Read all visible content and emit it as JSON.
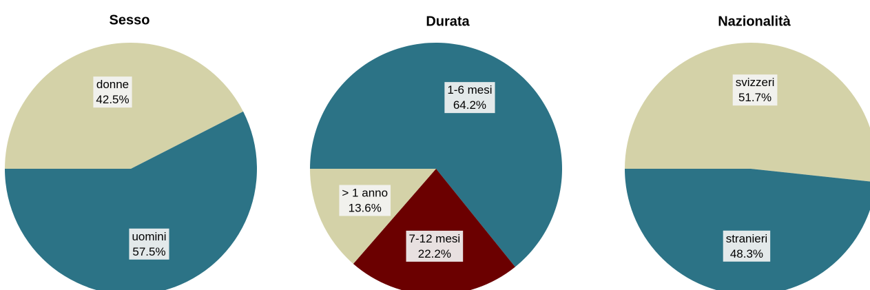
{
  "chart_data": [
    {
      "type": "pie",
      "title": "Sesso",
      "categories": [
        "donne",
        "uomini"
      ],
      "values": [
        42.5,
        57.5
      ],
      "value_labels": [
        "42.5%",
        "57.5%"
      ],
      "colors": [
        "#d4d2a8",
        "#2c7386"
      ]
    },
    {
      "type": "pie",
      "title": "Durata",
      "categories": [
        "1-6 mesi",
        "7-12 mesi",
        "> 1 anno"
      ],
      "values": [
        64.2,
        22.2,
        13.6
      ],
      "value_labels": [
        "64.2%",
        "22.2%",
        "13.6%"
      ],
      "colors": [
        "#2c7386",
        "#6b0000",
        "#d4d2a8"
      ]
    },
    {
      "type": "pie",
      "title": "Nazionalità",
      "categories": [
        "svizzeri",
        "stranieri"
      ],
      "values": [
        51.7,
        48.3
      ],
      "value_labels": [
        "51.7%",
        "48.3%"
      ],
      "colors": [
        "#d4d2a8",
        "#2c7386"
      ]
    }
  ]
}
